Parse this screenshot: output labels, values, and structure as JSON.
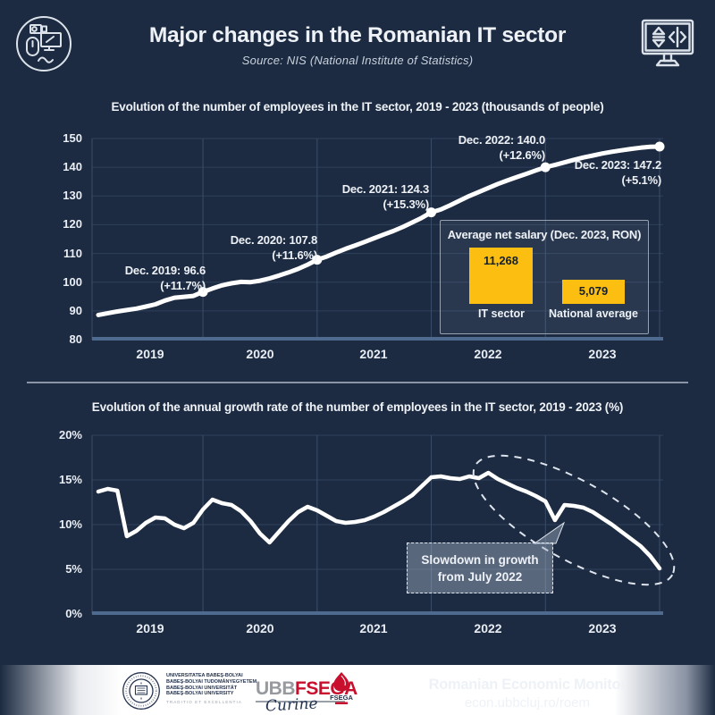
{
  "header": {
    "title": "Major changes in the Romanian IT sector",
    "subtitle": "Source: NIS (National Institute of Statistics)"
  },
  "colors": {
    "background": "#1c2b41",
    "series_line": "#ffffff",
    "grid_horizontal": "#2f415a",
    "grid_vertical": "#3a4d68",
    "axis_baseline": "#4f6a8f",
    "accent_yellow": "#fcbe11",
    "callout_fill": "rgba(164,178,198,0.45)",
    "fsega_red": "#c8102e",
    "footer_navy": "#16243c"
  },
  "chart_data": [
    {
      "type": "line",
      "title": "Evolution of the number of employees in the IT sector, 2019 - 2023 (thousands of people)",
      "frequency": "monthly",
      "x_start": "2019-01",
      "x_end": "2023-12",
      "xticks": [
        "2019",
        "2020",
        "2021",
        "2022",
        "2023"
      ],
      "ytick_labels": [
        "150",
        "140",
        "130",
        "120",
        "110",
        "100",
        "90",
        "80"
      ],
      "ylim": [
        80,
        150
      ],
      "grid": true,
      "values": [
        88.6,
        89.2,
        89.8,
        90.3,
        90.8,
        91.5,
        92.3,
        93.6,
        94.6,
        94.9,
        95.2,
        96.6,
        97.8,
        98.9,
        99.6,
        100.1,
        100.0,
        100.5,
        101.3,
        102.3,
        103.4,
        104.6,
        106.1,
        107.8,
        108.9,
        110.3,
        111.6,
        112.8,
        114.0,
        115.3,
        116.6,
        117.8,
        119.2,
        120.8,
        122.4,
        124.3,
        125.3,
        126.8,
        128.4,
        130.0,
        131.4,
        132.8,
        134.2,
        135.4,
        136.6,
        137.7,
        138.9,
        140.0,
        140.8,
        141.7,
        142.6,
        143.4,
        144.1,
        144.8,
        145.4,
        145.9,
        146.4,
        146.8,
        147.1,
        147.2
      ],
      "annotations": [
        {
          "date": "Dec. 2019:",
          "value": "96.6",
          "growth": "(+11.7%)"
        },
        {
          "date": "Dec. 2020:",
          "value": "107.8",
          "growth": "(+11.6%)"
        },
        {
          "date": "Dec. 2021:",
          "value": "124.3",
          "growth": "(+15.3%)"
        },
        {
          "date": "Dec. 2022:",
          "value": "140.0",
          "growth": "(+12.6%)"
        },
        {
          "date": "Dec. 2023:",
          "value": "147.2",
          "growth": "(+5.1%)"
        }
      ],
      "inset": {
        "type": "bar",
        "title": "Average net salary (Dec. 2023, RON)",
        "bars": [
          {
            "label": "IT sector",
            "value": "11,268",
            "numeric": 11268
          },
          {
            "label": "National average",
            "value": "5,079",
            "numeric": 5079
          }
        ]
      }
    },
    {
      "type": "line",
      "title": "Evolution of the annual growth rate of the number of employees in the IT sector, 2019 - 2023 (%)",
      "frequency": "monthly",
      "x_start": "2019-01",
      "x_end": "2023-12",
      "xticks": [
        "2019",
        "2020",
        "2021",
        "2022",
        "2023"
      ],
      "ytick_labels": [
        "20%",
        "15%",
        "10%",
        "5%",
        "0%"
      ],
      "ylim": [
        0,
        20
      ],
      "grid": true,
      "values": [
        13.7,
        14.0,
        13.8,
        8.7,
        9.3,
        10.2,
        10.8,
        10.7,
        10.0,
        9.6,
        10.2,
        11.7,
        12.8,
        12.4,
        12.2,
        11.5,
        10.4,
        9.0,
        8.0,
        9.2,
        10.4,
        11.4,
        12.0,
        11.6,
        11.0,
        10.4,
        10.2,
        10.3,
        10.5,
        10.9,
        11.4,
        12.0,
        12.6,
        13.3,
        14.3,
        15.3,
        15.4,
        15.2,
        15.1,
        15.4,
        15.2,
        15.8,
        15.1,
        14.6,
        14.1,
        13.7,
        13.2,
        12.6,
        10.5,
        12.2,
        12.1,
        11.9,
        11.4,
        10.7,
        10.0,
        9.2,
        8.4,
        7.6,
        6.5,
        5.1
      ],
      "callout": {
        "line1": "Slowdown in growth",
        "line2": "from July 2022"
      }
    }
  ],
  "footer": {
    "university_lines": [
      "UNIVERSITATEA BABEŞ-BOLYAI",
      "BABEŞ-BOLYAI TUDOMÁNYEGYETEM",
      "BABEŞ-BOLYAI UNIVERSITÄT",
      "BABEŞ-BOLYAI UNIVERSITY"
    ],
    "motto": "TRADITIO ET EXCELLENTIA",
    "logo_ubb": "UBB",
    "logo_fsega": "FSEGA",
    "crest_label": "FSEGA",
    "script_signature": "Curine",
    "title": "Romanian Economic Monitor",
    "url": "econ.ubbcluj.ro/roem"
  }
}
